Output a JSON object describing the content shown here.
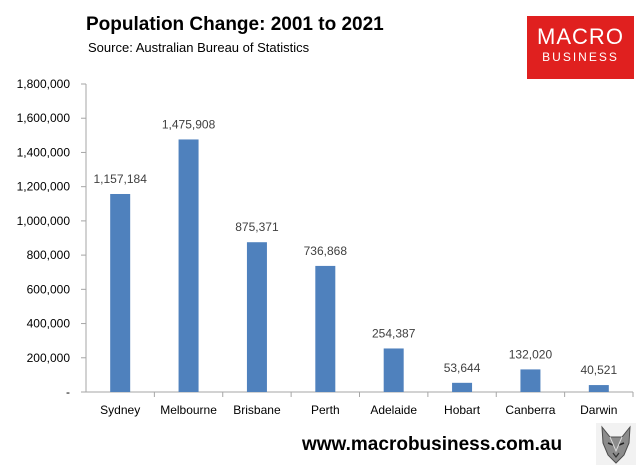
{
  "header": {
    "title": "Population Change: 2001 to 2021",
    "subtitle": "Source: Australian Bureau of Statistics"
  },
  "logo": {
    "line1": "MACRO",
    "line2": "BUSINESS",
    "bg_color": "#e0201f"
  },
  "footer": {
    "url": "www.macrobusiness.com.au",
    "mascot_icon": "wolf-head-icon"
  },
  "colors": {
    "bar": "#4f81bd",
    "axis": "#a6a6a6"
  },
  "chart_data": {
    "type": "bar",
    "categories": [
      "Sydney",
      "Melbourne",
      "Brisbane",
      "Perth",
      "Adelaide",
      "Hobart",
      "Canberra",
      "Darwin"
    ],
    "values": [
      1157184,
      1475908,
      875371,
      736868,
      254387,
      53644,
      132020,
      40521
    ],
    "value_labels": [
      "1,157,184",
      "1,475,908",
      "875,371",
      "736,868",
      "254,387",
      "53,644",
      "132,020",
      "40,521"
    ],
    "ylim": [
      0,
      1800000
    ],
    "y_ticks": [
      0,
      200000,
      400000,
      600000,
      800000,
      1000000,
      1200000,
      1400000,
      1600000,
      1800000
    ],
    "y_tick_labels": [
      "-",
      "200,000",
      "400,000",
      "600,000",
      "800,000",
      "1,000,000",
      "1,200,000",
      "1,400,000",
      "1,600,000",
      "1,800,000"
    ],
    "grid": false,
    "legend": "none",
    "xlabel": "",
    "ylabel": ""
  }
}
